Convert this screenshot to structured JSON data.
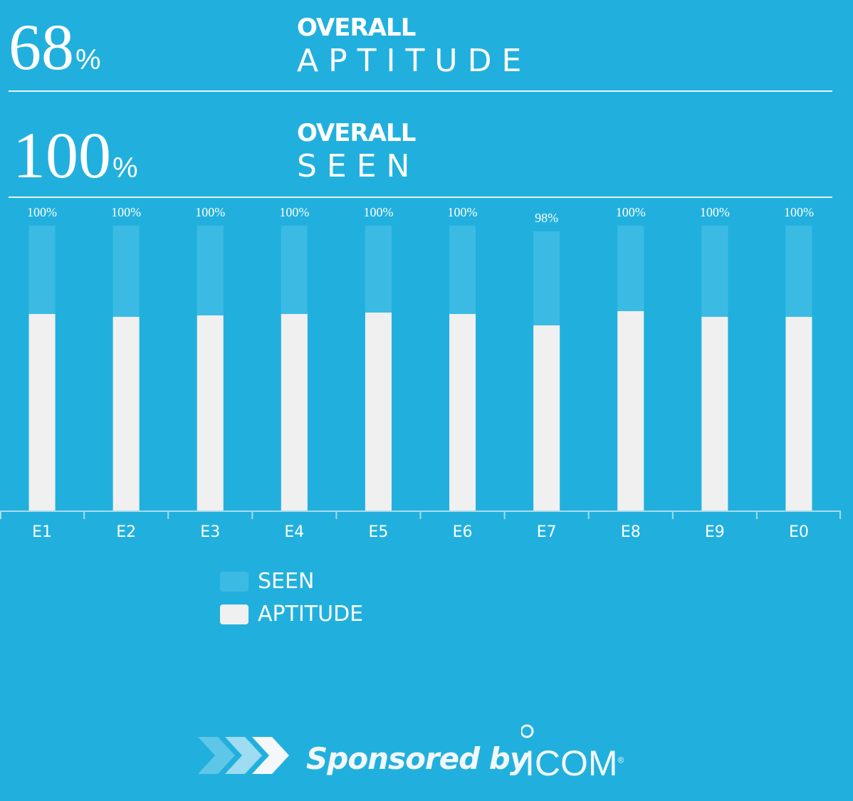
{
  "summary": {
    "aptitude": {
      "value": "68",
      "unit": "%",
      "line1": "OVERALL",
      "line2": "APTITUDE"
    },
    "seen": {
      "value": "100",
      "unit": "%",
      "line1": "OVERALL",
      "line2": "SEEN"
    }
  },
  "chart_data": {
    "type": "bar",
    "categories": [
      "E1",
      "E2",
      "E3",
      "E4",
      "E5",
      "E6",
      "E7",
      "E8",
      "E9",
      "E0"
    ],
    "series": [
      {
        "name": "SEEN",
        "values": [
          100,
          100,
          100,
          100,
          100,
          100,
          98,
          100,
          100,
          100
        ],
        "color": "#3bbbe3"
      },
      {
        "name": "APTITUDE",
        "values": [
          69,
          68,
          68.5,
          69,
          69.5,
          69,
          65,
          70,
          68,
          68
        ],
        "color": "#f0f0f0"
      }
    ],
    "data_labels": [
      "100%",
      "100%",
      "100%",
      "100%",
      "100%",
      "100%",
      "98%",
      "100%",
      "100%",
      "100%"
    ],
    "ylim": [
      0,
      100
    ],
    "grid": false,
    "legend": "bottom-left",
    "title": "",
    "xlabel": "",
    "ylabel": ""
  },
  "sponsor": {
    "text": "Sponsored by",
    "brand": "ICOM",
    "registered": "®"
  },
  "colors": {
    "background": "#21b0dd",
    "seen": "#3bbbe3",
    "aptitude": "#f0f0f0",
    "axis": "#a9dbee"
  },
  "icons": {
    "chevrons": "chevron-arrows-icon",
    "brand": "icom-logo-icon"
  }
}
